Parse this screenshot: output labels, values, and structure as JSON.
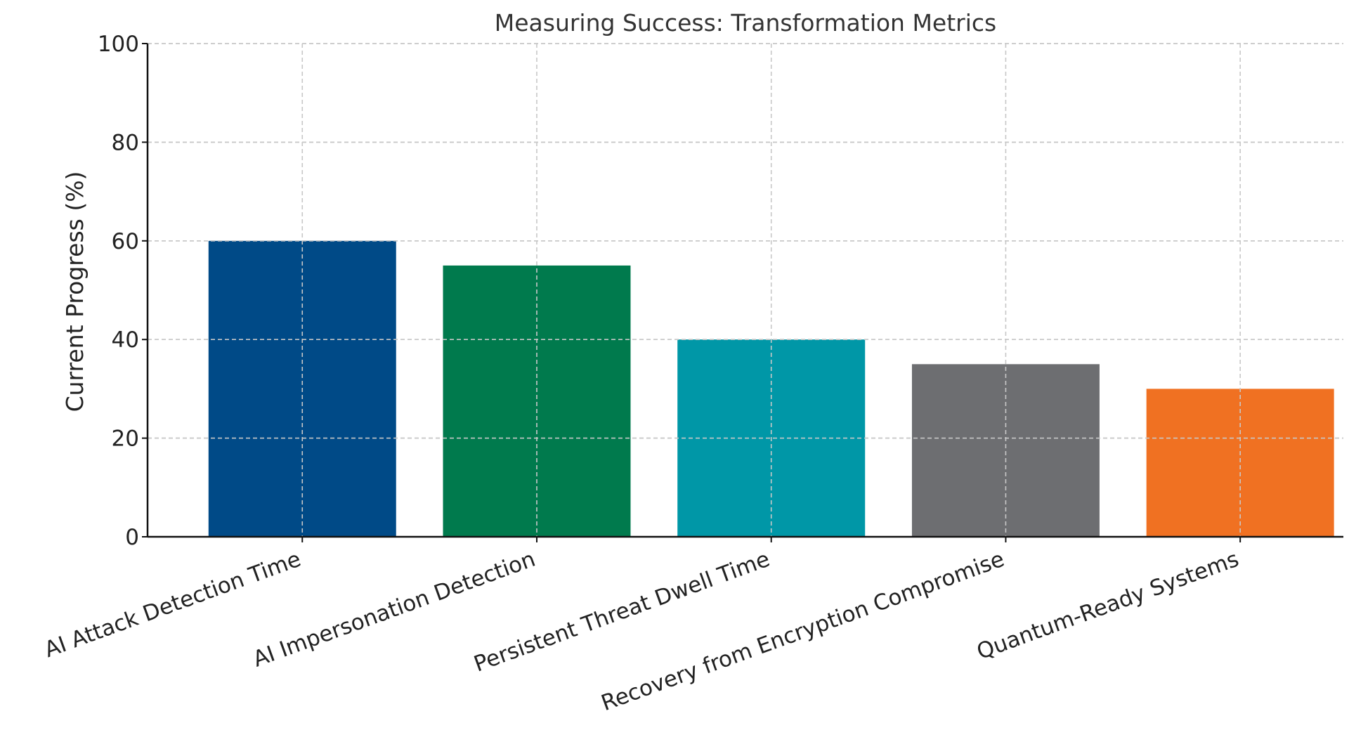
{
  "chart_data": {
    "type": "bar",
    "title": "Measuring Success: Transformation Metrics",
    "xlabel": "",
    "ylabel": "Current Progress (%)",
    "ylim": [
      0,
      100
    ],
    "yticks": [
      0,
      20,
      40,
      60,
      80,
      100
    ],
    "grid": true,
    "categories": [
      "AI Attack Detection Time",
      "AI Impersonation Detection",
      "Persistent Threat Dwell Time",
      "Recovery from Encryption Compromise",
      "Quantum-Ready Systems"
    ],
    "values": [
      60,
      55,
      40,
      35,
      30
    ],
    "colors": [
      "#004a87",
      "#007a4d",
      "#0097a7",
      "#6d6e71",
      "#f07122"
    ]
  }
}
